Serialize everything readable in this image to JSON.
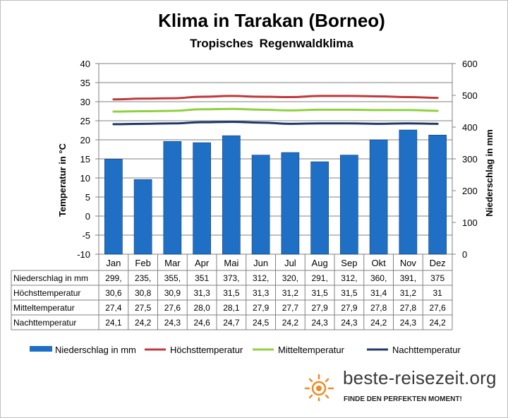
{
  "chart_data": {
    "type": "bar",
    "title": "Klima in Tarakan (Borneo)",
    "subtitle": "Tropisches Regenwaldklima",
    "categories": [
      "Jan",
      "Feb",
      "Mar",
      "Apr",
      "Mai",
      "Jun",
      "Jul",
      "Aug",
      "Sep",
      "Okt",
      "Nov",
      "Dez"
    ],
    "ylabel_left": "Temperatur in °C",
    "ylabel_right": "Niederschlag in mm",
    "y_left_range": [
      -10,
      40
    ],
    "y_left_ticks": [
      "40",
      "35",
      "30",
      "25",
      "20",
      "15",
      "10",
      "5",
      "0",
      "-5",
      "-10"
    ],
    "y_right_range": [
      0,
      600
    ],
    "y_right_ticks": [
      "600",
      "500",
      "400",
      "300",
      "200",
      "100",
      "0"
    ],
    "grid": true,
    "legend_position": "bottom",
    "series": [
      {
        "name": "Niederschlag in mm",
        "kind": "bar",
        "axis": "right",
        "color": "#1f6fc5",
        "values": [
          299,
          235,
          355,
          351,
          373,
          312,
          320,
          291,
          312,
          360,
          391,
          375
        ],
        "labels": [
          "299,",
          "235,",
          "355,",
          "351",
          "373,",
          "312,",
          "320,",
          "291,",
          "312,",
          "360,",
          "391,",
          "375"
        ]
      },
      {
        "name": "Höchsttemperatur",
        "kind": "line",
        "axis": "left",
        "color": "#c0393b",
        "values": [
          30.6,
          30.8,
          30.9,
          31.3,
          31.5,
          31.3,
          31.2,
          31.5,
          31.5,
          31.4,
          31.2,
          31
        ],
        "labels": [
          "30,6",
          "30,8",
          "30,9",
          "31,3",
          "31,5",
          "31,3",
          "31,2",
          "31,5",
          "31,5",
          "31,4",
          "31,2",
          "31"
        ]
      },
      {
        "name": "Mitteltemperatur",
        "kind": "line",
        "axis": "left",
        "color": "#8fd13f",
        "values": [
          27.4,
          27.5,
          27.6,
          28.0,
          28.1,
          27.9,
          27.7,
          27.9,
          27.9,
          27.8,
          27.8,
          27.6
        ],
        "labels": [
          "27,4",
          "27,5",
          "27,6",
          "28,0",
          "28,1",
          "27,9",
          "27,7",
          "27,9",
          "27,9",
          "27,8",
          "27,8",
          "27,6"
        ]
      },
      {
        "name": "Nachttemperatur",
        "kind": "line",
        "axis": "left",
        "color": "#1f3a68",
        "values": [
          24.1,
          24.2,
          24.3,
          24.6,
          24.7,
          24.5,
          24.2,
          24.3,
          24.3,
          24.2,
          24.3,
          24.2
        ],
        "labels": [
          "24,1",
          "24,2",
          "24,3",
          "24,6",
          "24,7",
          "24,5",
          "24,2",
          "24,3",
          "24,3",
          "24,2",
          "24,3",
          "24,2"
        ]
      }
    ]
  },
  "brand": {
    "name": "beste-reisezeit.org",
    "tagline": "FINDE DEN PERFEKTEN MOMENT!",
    "logo_icon": "sun-icon",
    "logo_color": "#f08a24"
  }
}
